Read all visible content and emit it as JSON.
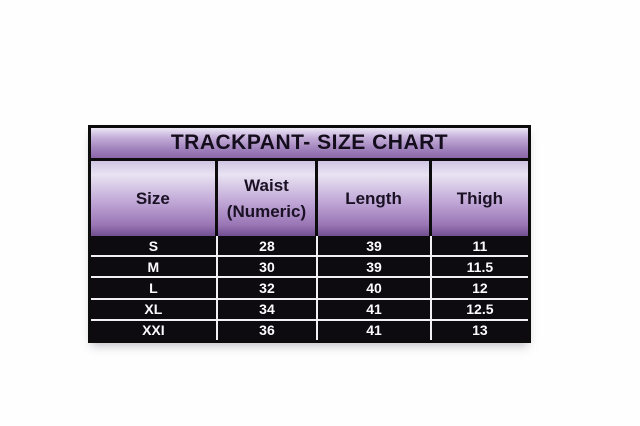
{
  "chart_data": {
    "type": "table",
    "title": "TRACKPANT- SIZE CHART",
    "columns": [
      "Size",
      "Waist (Numeric)",
      "Length",
      "Thigh"
    ],
    "rows": [
      [
        "S",
        "28",
        "39",
        "11"
      ],
      [
        "M",
        "30",
        "39",
        "11.5"
      ],
      [
        "L",
        "32",
        "40",
        "12"
      ],
      [
        "XL",
        "34",
        "41",
        "12.5"
      ],
      [
        "XXI",
        "36",
        "41",
        "13"
      ]
    ]
  },
  "colors": {
    "border_black": "#0c0c0c",
    "data_row_background": "#0d0a10",
    "data_text": "#fbfafc",
    "row_separator": "#f2f0f5",
    "purple_light": "#e9e3f2",
    "purple_mid": "#c3abd9",
    "purple_dark": "#714f90",
    "page_background": "#fefefe"
  }
}
